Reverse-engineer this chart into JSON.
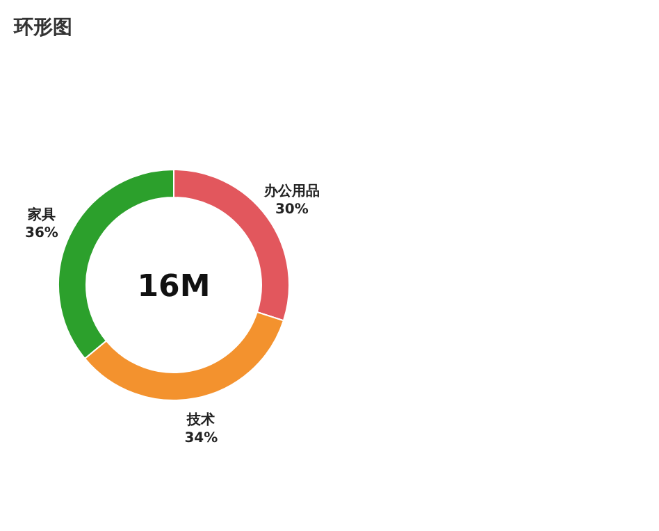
{
  "chart_data": {
    "type": "donut",
    "title": "环形图",
    "categories": [
      "办公用品",
      "技术",
      "家具"
    ],
    "values": [
      30,
      34,
      36
    ],
    "value_labels": [
      "30%",
      "34%",
      "36%"
    ],
    "colors": [
      "#e2575d",
      "#f3922e",
      "#2ca02c"
    ],
    "annotations": [
      "16M"
    ],
    "legend": false
  }
}
